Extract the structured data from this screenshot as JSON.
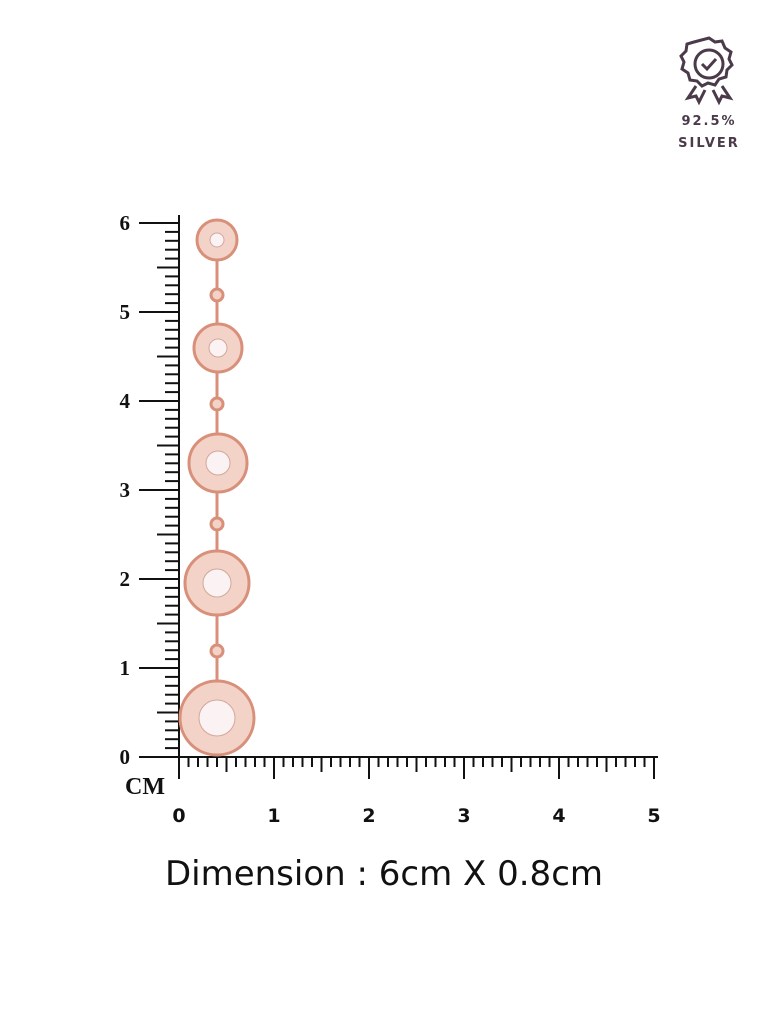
{
  "badge": {
    "purity": "92.5%",
    "metal": "SILVER"
  },
  "ruler": {
    "vertical_labels": [
      0,
      1,
      2,
      3,
      4,
      5,
      6
    ],
    "horizontal_labels": [
      0,
      1,
      2,
      3,
      4,
      5
    ],
    "unit": "CM"
  },
  "caption": "Dimension : 6cm X 0.8cm"
}
